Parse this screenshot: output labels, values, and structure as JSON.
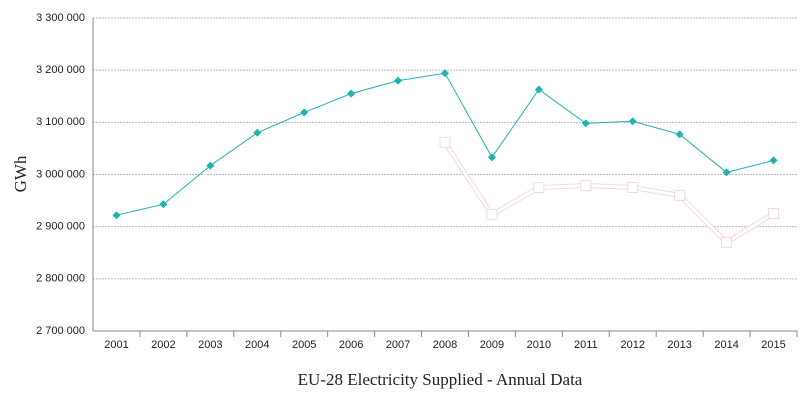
{
  "chart_data": {
    "type": "line",
    "title": "EU-28 Electricity Supplied - Annual Data",
    "ylabel": "GWh",
    "categories": [
      "2001",
      "2002",
      "2003",
      "2004",
      "2005",
      "2006",
      "2007",
      "2008",
      "2009",
      "2010",
      "2011",
      "2012",
      "2013",
      "2014",
      "2015"
    ],
    "series": [
      {
        "color": "#20b2b2",
        "values": [
          2922000,
          2943000,
          3017000,
          3080000,
          3119000,
          3155000,
          3180000,
          3194000,
          3033000,
          3163000,
          3098000,
          3102000,
          3077000,
          3004000,
          3027000
        ]
      },
      {
        "color": "#f4d7dc",
        "values": [
          null,
          null,
          null,
          null,
          null,
          null,
          null,
          3061000,
          2923000,
          2975000,
          2979000,
          2975000,
          2960000,
          2870000,
          2925000
        ]
      }
    ],
    "ylim": [
      2700000,
      3300000
    ],
    "yticks": [
      {
        "value": 2700000,
        "label": "2 700 000"
      },
      {
        "value": 2800000,
        "label": "2 800 000"
      },
      {
        "value": 2900000,
        "label": "2 900 000"
      },
      {
        "value": 3000000,
        "label": "3 000 000"
      },
      {
        "value": 3100000,
        "label": "3 100 000"
      },
      {
        "value": 3200000,
        "label": "3 200 000"
      },
      {
        "value": 3300000,
        "label": "3 300 000"
      }
    ],
    "grid": true
  }
}
